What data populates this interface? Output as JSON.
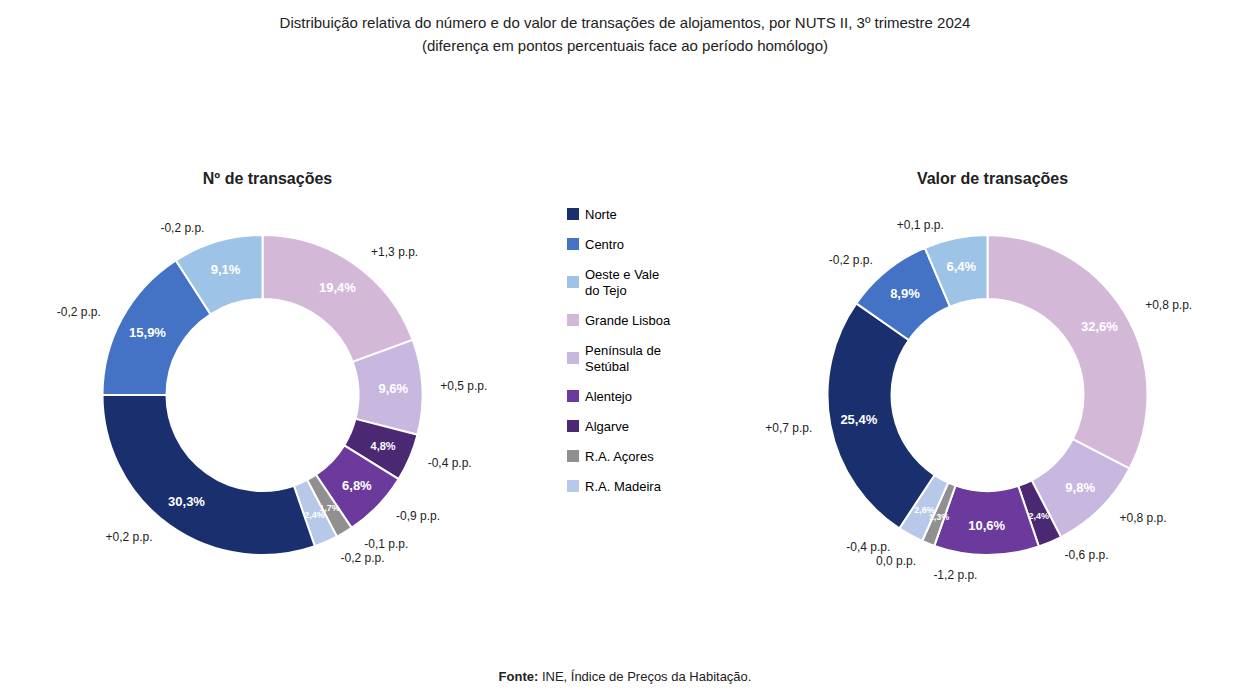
{
  "title": "Distribuição relativa do número e do valor de transações de alojamentos, por NUTS II, 3º trimestre 2024",
  "subtitle": "(diferença em pontos percentuais face ao período homólogo)",
  "annotations": [
    "Fonte:",
    " INE, Índice de Preços da Habitação."
  ],
  "categories": [
    "Norte",
    "Centro",
    "Oeste e Vale\ndo Tejo",
    "Grande Lisboa",
    "Península de\nSetúbal",
    "Alentejo",
    "Algarve",
    "R.A. Açores",
    "R.A. Madeira"
  ],
  "colors": [
    "#1a2f6e",
    "#4472c4",
    "#9dc3e6",
    "#d4b8d8",
    "#c8b8e0",
    "#6b3a9c",
    "#4a2872",
    "#909090",
    "#b8c8e8"
  ],
  "chart_data": [
    {
      "type": "pie",
      "title": "Nº de transações",
      "categories": [
        "Grande Lisboa",
        "Península de\nSetúbal",
        "Algarve",
        "Alentejo",
        "R.A. Açores",
        "R.A. Madeira",
        "Norte",
        "Centro",
        "Oeste e Vale\ndo Tejo"
      ],
      "values": [
        19.4,
        9.6,
        4.8,
        6.8,
        1.7,
        2.4,
        30.3,
        15.9,
        9.1
      ],
      "value_labels": [
        "19,4%",
        "9,6%",
        "4,8%",
        "6,8%",
        "1,7%",
        "2,4%",
        "30,3%",
        "15,9%",
        "9,1%"
      ],
      "colors": [
        "#d4b8d8",
        "#c8b8e0",
        "#4a2872",
        "#6b3a9c",
        "#909090",
        "#b8c8e8",
        "#1a2f6e",
        "#4472c4",
        "#9dc3e6"
      ],
      "annotations": [
        "+1,3 p.p.",
        "+0,5 p.p.",
        "-0,4 p.p.",
        "-0,9 p.p.",
        "-0,1 p.p.",
        "-0,2 p.p.",
        "+0,2 p.p.",
        "-0,2 p.p.",
        "-0,2 p.p."
      ],
      "data_labels": true
    },
    {
      "type": "pie",
      "title": "Valor de transações",
      "categories": [
        "Grande Lisboa",
        "Península de\nSetúbal",
        "Algarve",
        "Alentejo",
        "R.A. Açores",
        "R.A. Madeira",
        "Norte",
        "Centro",
        "Oeste e Vale\ndo Tejo"
      ],
      "values": [
        32.6,
        9.8,
        2.4,
        10.6,
        1.3,
        2.6,
        25.4,
        8.9,
        6.4
      ],
      "value_labels": [
        "32,6%",
        "9,8%",
        "2,4%",
        "10,6%",
        "1,3%",
        "2,6%",
        "25,4%",
        "8,9%",
        "6,4%"
      ],
      "colors": [
        "#d4b8d8",
        "#c8b8e0",
        "#4a2872",
        "#6b3a9c",
        "#909090",
        "#b8c8e8",
        "#1a2f6e",
        "#4472c4",
        "#9dc3e6"
      ],
      "annotations": [
        "+0,8 p.p.",
        "+0,8 p.p.",
        "-0,6 p.p.",
        "-1,2 p.p.",
        "0,0 p.p.",
        "-0,4 p.p.",
        "+0,7 p.p.",
        "-0,2 p.p.",
        "+0,1 p.p."
      ],
      "data_labels": true
    }
  ]
}
